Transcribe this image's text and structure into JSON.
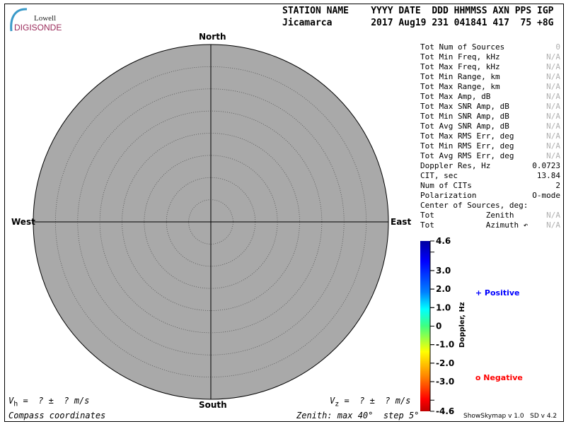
{
  "logo": {
    "line1": "Lowell",
    "line2": "DIGISONDE"
  },
  "header": {
    "labels": "STATION NAME    YYYY DATE  DDD HHMMSS AXN PPS IGP",
    "values": "Jicamarca       2017 Aug19 231 041841 417  75 +8G"
  },
  "compass": {
    "north": "North",
    "south": "South",
    "east": "East",
    "west": "West"
  },
  "stats": [
    {
      "label": "Tot Num of Sources",
      "value": "0",
      "na": true
    },
    {
      "label": "Tot Min Freq, kHz",
      "value": "N/A",
      "na": true
    },
    {
      "label": "Tot Max Freq, kHz",
      "value": "N/A",
      "na": true
    },
    {
      "label": "Tot Min Range, km",
      "value": "N/A",
      "na": true
    },
    {
      "label": "Tot Max Range, km",
      "value": "N/A",
      "na": true
    },
    {
      "label": "Tot Max Amp, dB",
      "value": "N/A",
      "na": true
    },
    {
      "label": "Tot Max SNR Amp, dB",
      "value": "N/A",
      "na": true
    },
    {
      "label": "Tot Min SNR Amp, dB",
      "value": "N/A",
      "na": true
    },
    {
      "label": "Tot Avg SNR Amp, dB",
      "value": "N/A",
      "na": true
    },
    {
      "label": "Tot Max RMS Err, deg",
      "value": "N/A",
      "na": true
    },
    {
      "label": "Tot Min RMS Err, deg",
      "value": "N/A",
      "na": true
    },
    {
      "label": "Tot Avg RMS Err, deg",
      "value": "N/A",
      "na": true
    },
    {
      "label": "Doppler Res, Hz",
      "value": "0.0723",
      "na": false
    },
    {
      "label": "CIT, sec",
      "value": "13.84",
      "na": false
    },
    {
      "label": "Num of CITs",
      "value": "2",
      "na": false
    },
    {
      "label": "Polarization",
      "value": "O-mode",
      "na": false
    },
    {
      "label": "Center of Sources, deg:",
      "value": "",
      "na": false
    },
    {
      "label": "Tot           Zenith",
      "value": "N/A",
      "na": true
    },
    {
      "label": "Tot           Azimuth ↶",
      "value": "N/A",
      "na": true
    }
  ],
  "colorbar": {
    "title": "Doppler, Hz",
    "max": 4.6,
    "min": -4.6,
    "ticks": [
      "4.6",
      "3.0",
      "2.0",
      "1.0",
      "0",
      "-1.0",
      "-2.0",
      "-3.0",
      "-4.6"
    ]
  },
  "legend": {
    "positive": "Positive",
    "negative": "Negative",
    "positive_symbol": "+",
    "negative_symbol": "o",
    "positive_color": "#0000ff",
    "negative_color": "#ff0000"
  },
  "footer": {
    "vh": "V",
    "vh_sub": "h",
    "vh_rest": " =  ? ±  ? m/s",
    "vz": "V",
    "vz_sub": "z",
    "vz_rest": " =  ? ±  ? m/s",
    "coords": "Compass coordinates",
    "zenith": "Zenith: max 40°  step 5°",
    "version": "ShowSkymap v 1.0   SD v 4.2"
  },
  "skymap": {
    "zenith_max_deg": 40,
    "zenith_step_deg": 5,
    "background": "#a9a9a9"
  }
}
